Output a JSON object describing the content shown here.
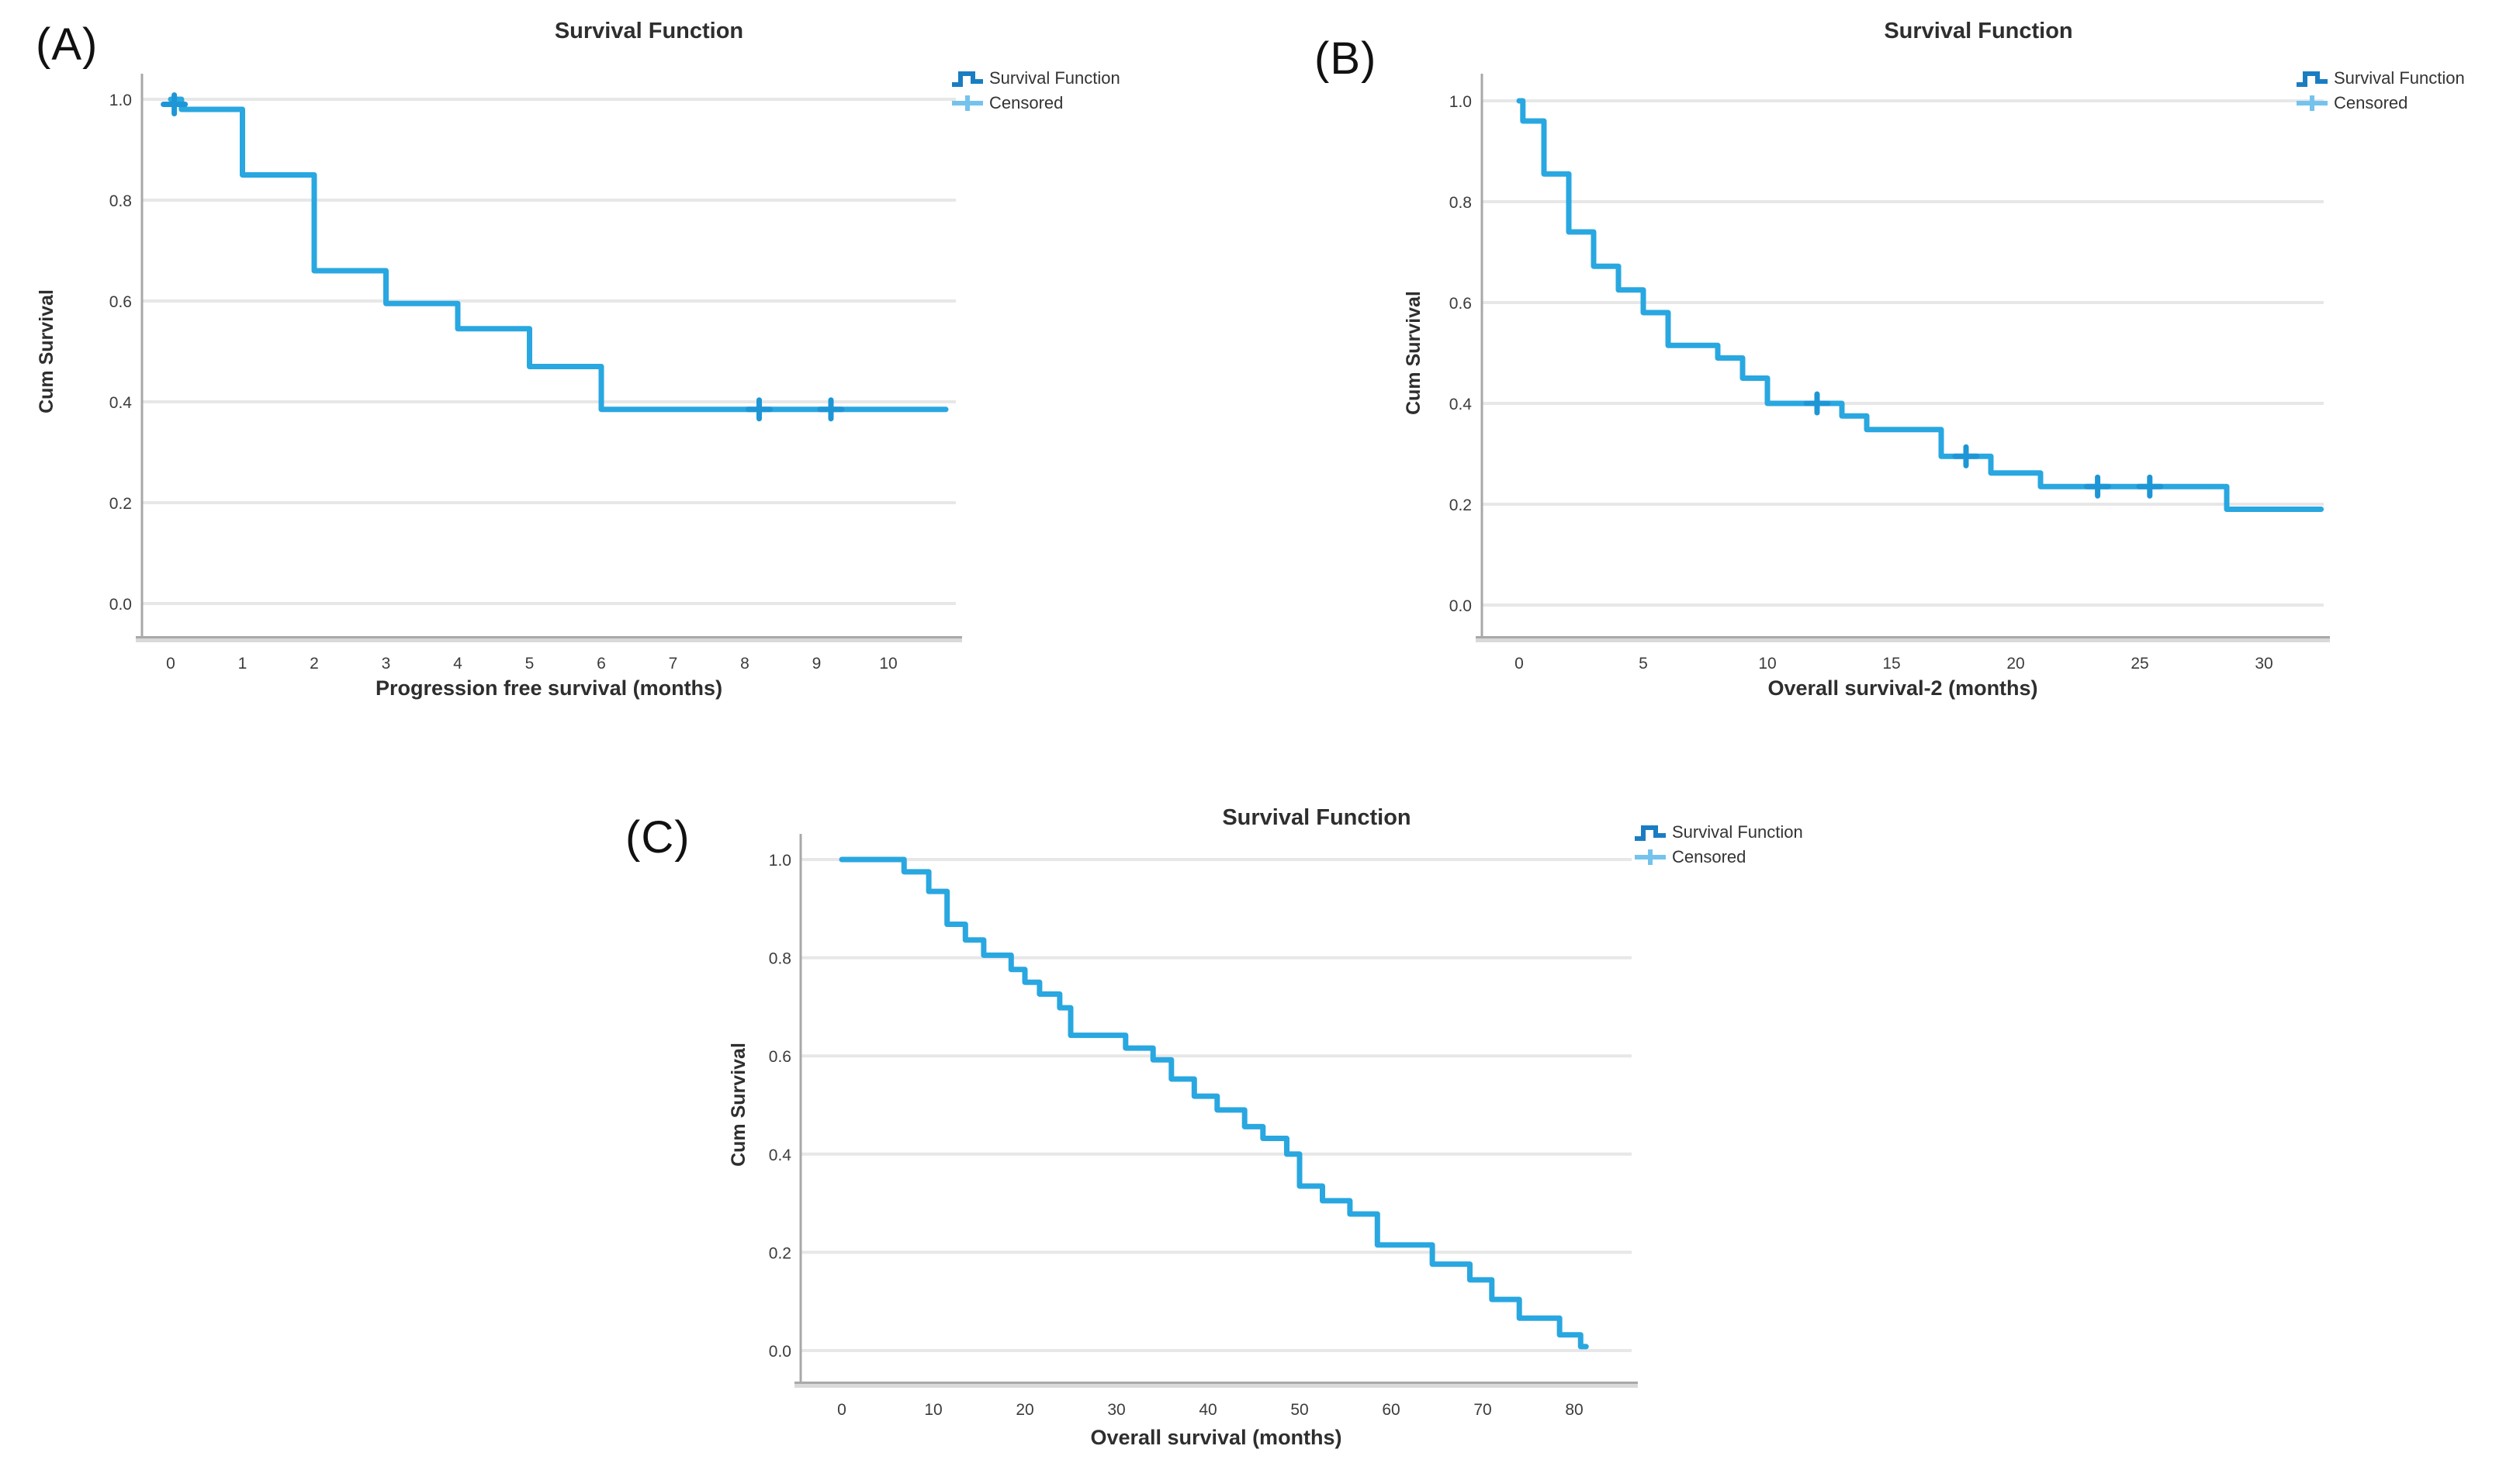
{
  "figure": {
    "panels": [
      {
        "id": "A",
        "panel_label": "(A)",
        "title": "Survival Function",
        "x_axis_label": "Progression free survival (months)",
        "y_axis_label": "Cum Survival",
        "legend": {
          "items": [
            {
              "label": "Survival Function",
              "symbol": "step-line-icon"
            },
            {
              "label": "Censored",
              "symbol": "plus-icon"
            }
          ]
        }
      },
      {
        "id": "B",
        "panel_label": "(B)",
        "title": "Survival Function",
        "x_axis_label": "Overall survival-2 (months)",
        "y_axis_label": "Cum Survival",
        "legend": {
          "items": [
            {
              "label": "Survival Function",
              "symbol": "step-line-icon"
            },
            {
              "label": "Censored",
              "symbol": "plus-icon"
            }
          ]
        }
      },
      {
        "id": "C",
        "panel_label": "(C)",
        "title": "Survival Function",
        "x_axis_label": "Overall survival (months)",
        "y_axis_label": "Cum Survival",
        "legend": {
          "items": [
            {
              "label": "Survival Function",
              "symbol": "step-line-icon"
            },
            {
              "label": "Censored",
              "symbol": "plus-icon"
            }
          ]
        }
      }
    ]
  },
  "chart_data": [
    {
      "panel": "A",
      "type": "line",
      "subtype": "kaplan-meier-step",
      "title": "Survival Function",
      "xlabel": "Progression free survival (months)",
      "ylabel": "Cum Survival",
      "xticks": [
        0,
        1,
        2,
        3,
        4,
        5,
        6,
        7,
        8,
        9,
        10
      ],
      "yticks": [
        0.0,
        0.2,
        0.4,
        0.6,
        0.8,
        1.0
      ],
      "xlim": [
        -0.4,
        10.95
      ],
      "ylim": [
        -0.06,
        1.05
      ],
      "grid": "horizontal",
      "legend_position": "top-right",
      "line_color": "#29a7e0",
      "censor_color": "#1e96d6",
      "grid_color": "#e7e7e7",
      "axis_color": "#a8a8a8",
      "series": [
        {
          "name": "Survival Function",
          "steps": [
            [
              0,
              1.0
            ],
            [
              0.15,
              0.98
            ],
            [
              1,
              0.85
            ],
            [
              2,
              0.66
            ],
            [
              3,
              0.595
            ],
            [
              4,
              0.545
            ],
            [
              5,
              0.47
            ],
            [
              6,
              0.385
            ],
            [
              10.8,
              0.385
            ]
          ]
        }
      ],
      "censored": [
        [
          0.05,
          0.99
        ],
        [
          8.2,
          0.385
        ],
        [
          9.2,
          0.385
        ]
      ]
    },
    {
      "panel": "B",
      "type": "line",
      "subtype": "kaplan-meier-step",
      "title": "Survival Function",
      "xlabel": "Overall survival-2 (months)",
      "ylabel": "Cum Survival",
      "xticks": [
        0,
        5,
        10,
        15,
        20,
        25,
        30
      ],
      "yticks": [
        0.0,
        0.2,
        0.4,
        0.6,
        0.8,
        1.0
      ],
      "xlim": [
        -1.5,
        32.4
      ],
      "ylim": [
        -0.06,
        1.05
      ],
      "grid": "horizontal",
      "legend_position": "top-right",
      "line_color": "#29a7e0",
      "censor_color": "#1e96d6",
      "grid_color": "#e7e7e7",
      "axis_color": "#a8a8a8",
      "series": [
        {
          "name": "Survival Function",
          "steps": [
            [
              0,
              1.0
            ],
            [
              0.15,
              0.96
            ],
            [
              1,
              0.855
            ],
            [
              2,
              0.74
            ],
            [
              3,
              0.672
            ],
            [
              4,
              0.625
            ],
            [
              5,
              0.58
            ],
            [
              6,
              0.515
            ],
            [
              8,
              0.49
            ],
            [
              9,
              0.45
            ],
            [
              10,
              0.4
            ],
            [
              13,
              0.375
            ],
            [
              14,
              0.348
            ],
            [
              17,
              0.295
            ],
            [
              19,
              0.262
            ],
            [
              21,
              0.235
            ],
            [
              28.5,
              0.19
            ],
            [
              32.3,
              0.19
            ]
          ]
        }
      ],
      "censored": [
        [
          12,
          0.4
        ],
        [
          18,
          0.295
        ],
        [
          23.3,
          0.235
        ],
        [
          25.4,
          0.235
        ]
      ]
    },
    {
      "panel": "C",
      "type": "line",
      "subtype": "kaplan-meier-step",
      "title": "Survival Function",
      "xlabel": "Overall survival (months)",
      "ylabel": "Cum Survival",
      "xticks": [
        0,
        10,
        20,
        30,
        40,
        50,
        60,
        70,
        80
      ],
      "yticks": [
        0.0,
        0.2,
        0.4,
        0.6,
        0.8,
        1.0
      ],
      "xlim": [
        -4.5,
        86.3
      ],
      "ylim": [
        -0.06,
        1.05
      ],
      "grid": "horizontal",
      "legend_position": "top-right",
      "line_color": "#29a7e0",
      "censor_color": "#1e96d6",
      "grid_color": "#e7e7e7",
      "axis_color": "#a8a8a8",
      "series": [
        {
          "name": "Survival Function",
          "steps": [
            [
              0,
              1.0
            ],
            [
              6.8,
              0.975
            ],
            [
              9.5,
              0.935
            ],
            [
              11.5,
              0.868
            ],
            [
              13.5,
              0.836
            ],
            [
              15.5,
              0.805
            ],
            [
              18.5,
              0.776
            ],
            [
              20,
              0.75
            ],
            [
              21.6,
              0.726
            ],
            [
              23.8,
              0.698
            ],
            [
              25,
              0.642
            ],
            [
              31,
              0.616
            ],
            [
              34,
              0.592
            ],
            [
              36,
              0.553
            ],
            [
              38.5,
              0.518
            ],
            [
              41,
              0.49
            ],
            [
              44,
              0.456
            ],
            [
              46,
              0.432
            ],
            [
              48.6,
              0.4
            ],
            [
              50,
              0.335
            ],
            [
              52.5,
              0.305
            ],
            [
              55.5,
              0.278
            ],
            [
              58.5,
              0.215
            ],
            [
              64.5,
              0.176
            ],
            [
              68.6,
              0.144
            ],
            [
              71,
              0.104
            ],
            [
              74,
              0.066
            ],
            [
              78.4,
              0.032
            ],
            [
              80.7,
              0.008
            ],
            [
              81.3,
              0.008
            ]
          ]
        }
      ],
      "censored": []
    }
  ]
}
